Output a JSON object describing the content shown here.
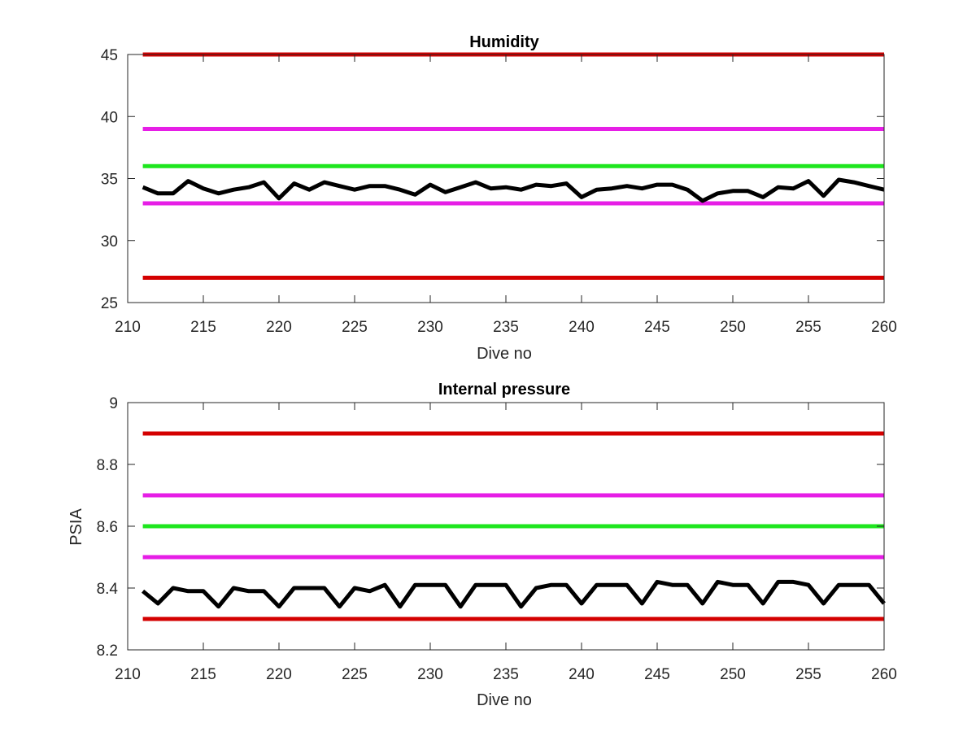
{
  "chart_data": [
    {
      "type": "line",
      "title": "Humidity",
      "xlabel": "Dive no",
      "ylabel": "",
      "xlim": [
        210,
        260
      ],
      "ylim": [
        25,
        45
      ],
      "xticks": [
        210,
        215,
        220,
        225,
        230,
        235,
        240,
        245,
        250,
        255,
        260
      ],
      "yticks": [
        25,
        30,
        35,
        40,
        45
      ],
      "ytick_labels": [
        "25",
        "30",
        "35",
        "40",
        "45"
      ],
      "grid": false,
      "limit_lines": [
        {
          "value": 45,
          "color": "#d40000"
        },
        {
          "value": 39,
          "color": "#e61ee6"
        },
        {
          "value": 36,
          "color": "#1ee61e"
        },
        {
          "value": 33,
          "color": "#e61ee6"
        },
        {
          "value": 27,
          "color": "#d40000"
        }
      ],
      "series": [
        {
          "color": "#000000",
          "x": [
            211,
            212,
            213,
            214,
            215,
            216,
            217,
            218,
            219,
            220,
            221,
            222,
            223,
            224,
            225,
            226,
            227,
            228,
            229,
            230,
            231,
            232,
            233,
            234,
            235,
            236,
            237,
            238,
            239,
            240,
            241,
            242,
            243,
            244,
            245,
            246,
            247,
            248,
            249,
            250,
            251,
            252,
            253,
            254,
            255,
            256,
            257,
            258,
            259,
            260
          ],
          "values": [
            34.3,
            33.8,
            33.8,
            34.8,
            34.2,
            33.8,
            34.1,
            34.3,
            34.7,
            33.4,
            34.6,
            34.1,
            34.7,
            34.4,
            34.1,
            34.4,
            34.4,
            34.1,
            33.7,
            34.5,
            33.9,
            34.3,
            34.7,
            34.2,
            34.3,
            34.1,
            34.5,
            34.4,
            34.6,
            33.5,
            34.1,
            34.2,
            34.4,
            34.2,
            34.5,
            34.5,
            34.1,
            33.2,
            33.8,
            34.0,
            34.0,
            33.5,
            34.3,
            34.2,
            34.8,
            33.6,
            34.9,
            34.7,
            34.4,
            34.1
          ]
        }
      ]
    },
    {
      "type": "line",
      "title": "Internal pressure",
      "xlabel": "Dive no",
      "ylabel": "PSIA",
      "xlim": [
        210,
        260
      ],
      "ylim": [
        8.2,
        9.0
      ],
      "xticks": [
        210,
        215,
        220,
        225,
        230,
        235,
        240,
        245,
        250,
        255,
        260
      ],
      "yticks": [
        8.2,
        8.4,
        8.6,
        8.8,
        9.0
      ],
      "ytick_labels": [
        "8.2",
        "8.4",
        "8.6",
        "8.8",
        "9"
      ],
      "grid": false,
      "limit_lines": [
        {
          "value": 8.9,
          "color": "#d40000"
        },
        {
          "value": 8.7,
          "color": "#e61ee6"
        },
        {
          "value": 8.6,
          "color": "#1ee61e"
        },
        {
          "value": 8.5,
          "color": "#e61ee6"
        },
        {
          "value": 8.3,
          "color": "#d40000"
        }
      ],
      "series": [
        {
          "color": "#000000",
          "x": [
            211,
            212,
            213,
            214,
            215,
            216,
            217,
            218,
            219,
            220,
            221,
            222,
            223,
            224,
            225,
            226,
            227,
            228,
            229,
            230,
            231,
            232,
            233,
            234,
            235,
            236,
            237,
            238,
            239,
            240,
            241,
            242,
            243,
            244,
            245,
            246,
            247,
            248,
            249,
            250,
            251,
            252,
            253,
            254,
            255,
            256,
            257,
            258,
            259,
            260
          ],
          "values": [
            8.39,
            8.35,
            8.4,
            8.39,
            8.39,
            8.34,
            8.4,
            8.39,
            8.39,
            8.34,
            8.4,
            8.4,
            8.4,
            8.34,
            8.4,
            8.39,
            8.41,
            8.34,
            8.41,
            8.41,
            8.41,
            8.34,
            8.41,
            8.41,
            8.41,
            8.34,
            8.4,
            8.41,
            8.41,
            8.35,
            8.41,
            8.41,
            8.41,
            8.35,
            8.42,
            8.41,
            8.41,
            8.35,
            8.42,
            8.41,
            8.41,
            8.35,
            8.42,
            8.42,
            8.41,
            8.35,
            8.41,
            8.41,
            8.41,
            8.35
          ]
        }
      ]
    }
  ]
}
